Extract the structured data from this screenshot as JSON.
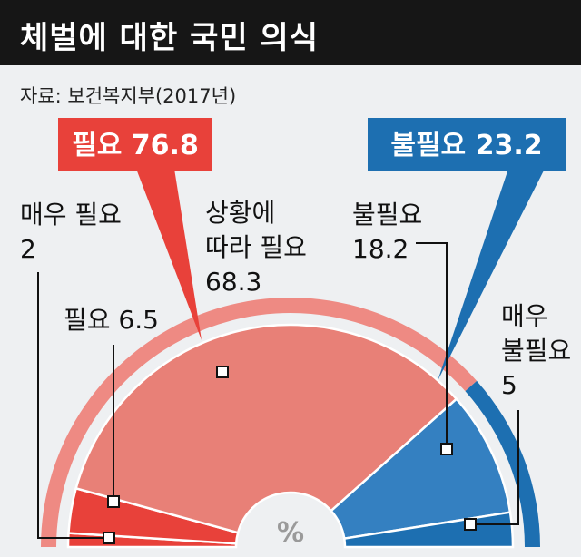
{
  "header": {
    "title": "체벌에 대한 국민 의식",
    "source": "자료: 보건복지부(2017년)"
  },
  "colors": {
    "need_dark": "#e8413a",
    "need_light": "#e88077",
    "need_arc": "#ee8a83",
    "not_need_dark": "#1d6fb1",
    "not_need_mid": "#3480c1"
  },
  "chart_data": {
    "type": "pie",
    "unit_label": "%",
    "groups": [
      {
        "label": "필요 76.8",
        "name": "필요",
        "value": 76.8
      },
      {
        "label": "불필요 23.2",
        "name": "불필요",
        "value": 23.2
      }
    ],
    "slices": [
      {
        "group": "필요",
        "label_lines": [
          "매우 필요",
          "2"
        ],
        "name": "매우 필요",
        "value": 2
      },
      {
        "group": "필요",
        "label_lines": [
          "필요 6.5"
        ],
        "name": "필요",
        "value": 6.5
      },
      {
        "group": "필요",
        "label_lines": [
          "상황에",
          "따라 필요",
          "68.3"
        ],
        "name": "상황에 따라 필요",
        "value": 68.3
      },
      {
        "group": "불필요",
        "label_lines": [
          "불필요",
          "18.2"
        ],
        "name": "불필요",
        "value": 18.2
      },
      {
        "group": "불필요",
        "label_lines": [
          "매우",
          "불필요",
          "5"
        ],
        "name": "매우 불필요",
        "value": 5
      }
    ]
  }
}
